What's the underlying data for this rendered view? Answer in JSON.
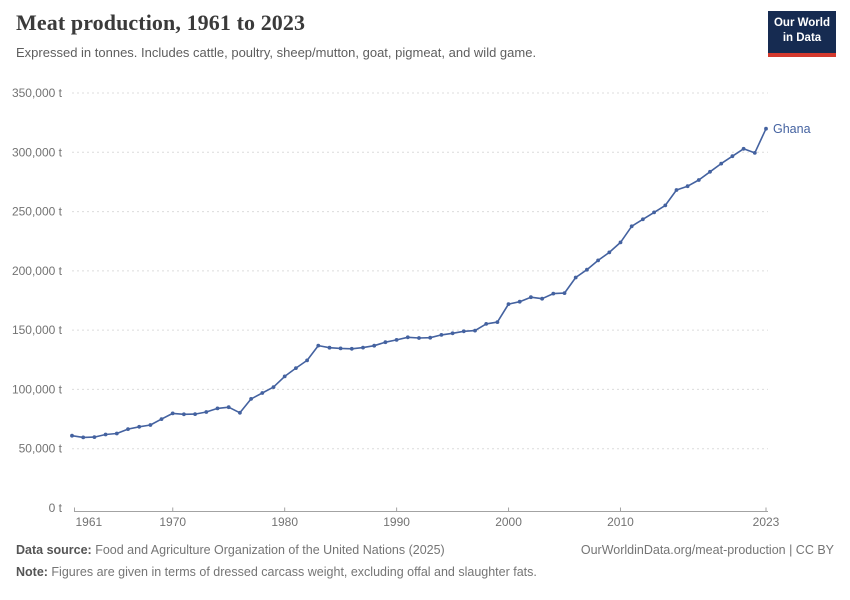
{
  "header": {
    "title": "Meat production, 1961 to 2023",
    "subtitle": "Expressed in tonnes. Includes cattle, poultry, sheep/mutton, goat, pigmeat, and wild game.",
    "logo": {
      "line1": "Our World",
      "line2": "in Data",
      "bg_color": "#162b51",
      "accent_color": "#d4392d"
    }
  },
  "chart_data": {
    "type": "line",
    "title": "Meat production, 1961 to 2023",
    "xlabel": "",
    "ylabel": "",
    "xlim": [
      1961,
      2023
    ],
    "ylim": [
      0,
      350000
    ],
    "x_ticks": [
      1961,
      1970,
      1980,
      1990,
      2000,
      2010,
      2023
    ],
    "y_ticks": [
      0,
      50000,
      100000,
      150000,
      200000,
      250000,
      300000,
      350000
    ],
    "y_tick_suffix": " t",
    "grid": "dashed-horizontal",
    "legend_position": "end-of-line-label",
    "series": [
      {
        "name": "Ghana",
        "color": "#4462a0",
        "years": [
          1961,
          1962,
          1963,
          1964,
          1965,
          1966,
          1967,
          1968,
          1969,
          1970,
          1971,
          1972,
          1973,
          1974,
          1975,
          1976,
          1977,
          1978,
          1979,
          1980,
          1981,
          1982,
          1983,
          1984,
          1985,
          1986,
          1987,
          1988,
          1989,
          1990,
          1991,
          1992,
          1993,
          1994,
          1995,
          1996,
          1997,
          1998,
          1999,
          2000,
          2001,
          2002,
          2003,
          2004,
          2005,
          2006,
          2007,
          2008,
          2009,
          2010,
          2011,
          2012,
          2013,
          2014,
          2015,
          2016,
          2017,
          2018,
          2019,
          2020,
          2021,
          2022,
          2023
        ],
        "values": [
          61000,
          59500,
          59800,
          62000,
          62800,
          66500,
          68500,
          70000,
          75000,
          79800,
          79000,
          79200,
          81000,
          84000,
          85000,
          80300,
          92000,
          97000,
          102000,
          111000,
          118000,
          124500,
          137000,
          135200,
          134600,
          134300,
          135300,
          136900,
          139800,
          141800,
          144000,
          143400,
          143600,
          146000,
          147300,
          149000,
          149600,
          155300,
          156800,
          172000,
          174000,
          177800,
          176500,
          180800,
          181200,
          194400,
          201000,
          208800,
          215600,
          224000,
          237600,
          243500,
          249300,
          255200,
          268200,
          271400,
          276600,
          283500,
          290500,
          296700,
          302900,
          299500,
          319900
        ]
      }
    ]
  },
  "footer": {
    "source_label": "Data source:",
    "source_value": " Food and Agriculture Organization of the United Nations (2025)",
    "link_text": "OurWorldinData.org/meat-production | CC BY",
    "note_label": "Note:",
    "note_value": " Figures are given in terms of dressed carcass weight, excluding offal and slaughter fats."
  },
  "colors": {
    "line": "#4462a0",
    "grid": "#dcdcdc",
    "axis": "#a3a3a3",
    "tick_text": "#737373",
    "title_text": "#3a3a3a"
  }
}
